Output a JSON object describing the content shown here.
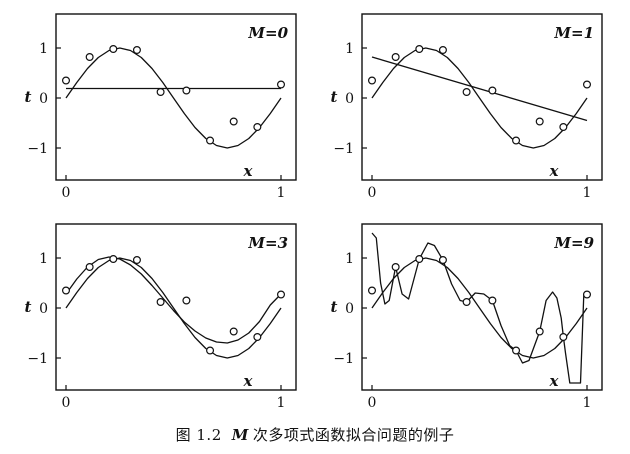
{
  "caption": {
    "figure_number": "图 1.2",
    "variable": "M",
    "text": "次多项式函数拟合问题的例子"
  },
  "chart_data": [
    {
      "type": "line",
      "panel_label": "M=0",
      "xlabel": "x",
      "ylabel": "t",
      "xlim": [
        0,
        1
      ],
      "ylim": [
        -1.5,
        1.5
      ],
      "xticks": [
        "0",
        "1"
      ],
      "yticks": [
        "1",
        "0",
        "−1"
      ],
      "grid": false,
      "points": {
        "x": [
          0.0,
          0.11,
          0.22,
          0.33,
          0.44,
          0.56,
          0.67,
          0.78,
          0.89,
          1.0
        ],
        "y": [
          0.35,
          0.82,
          0.98,
          0.96,
          0.12,
          0.15,
          -0.85,
          -0.47,
          -0.58,
          0.27
        ]
      },
      "curves": [
        {
          "role": "target",
          "x": [
            0.0,
            0.05,
            0.1,
            0.15,
            0.2,
            0.25,
            0.3,
            0.35,
            0.4,
            0.45,
            0.5,
            0.55,
            0.6,
            0.65,
            0.7,
            0.75,
            0.8,
            0.85,
            0.9,
            0.95,
            1.0
          ],
          "y": [
            0.0,
            0.31,
            0.59,
            0.81,
            0.95,
            1.0,
            0.95,
            0.81,
            0.59,
            0.31,
            0.0,
            -0.31,
            -0.59,
            -0.81,
            -0.95,
            -1.0,
            -0.95,
            -0.81,
            -0.59,
            -0.31,
            0.0
          ]
        },
        {
          "role": "fit",
          "x": [
            0.0,
            1.0
          ],
          "y": [
            0.19,
            0.19
          ]
        }
      ]
    },
    {
      "type": "line",
      "panel_label": "M=1",
      "xlabel": "x",
      "ylabel": "t",
      "xlim": [
        0,
        1
      ],
      "ylim": [
        -1.5,
        1.5
      ],
      "xticks": [
        "0",
        "1"
      ],
      "yticks": [
        "1",
        "0",
        "−1"
      ],
      "grid": false,
      "points": {
        "x": [
          0.0,
          0.11,
          0.22,
          0.33,
          0.44,
          0.56,
          0.67,
          0.78,
          0.89,
          1.0
        ],
        "y": [
          0.35,
          0.82,
          0.98,
          0.96,
          0.12,
          0.15,
          -0.85,
          -0.47,
          -0.58,
          0.27
        ]
      },
      "curves": [
        {
          "role": "target",
          "x": [
            0.0,
            0.05,
            0.1,
            0.15,
            0.2,
            0.25,
            0.3,
            0.35,
            0.4,
            0.45,
            0.5,
            0.55,
            0.6,
            0.65,
            0.7,
            0.75,
            0.8,
            0.85,
            0.9,
            0.95,
            1.0
          ],
          "y": [
            0.0,
            0.31,
            0.59,
            0.81,
            0.95,
            1.0,
            0.95,
            0.81,
            0.59,
            0.31,
            0.0,
            -0.31,
            -0.59,
            -0.81,
            -0.95,
            -1.0,
            -0.95,
            -0.81,
            -0.59,
            -0.31,
            0.0
          ]
        },
        {
          "role": "fit",
          "x": [
            0.0,
            1.0
          ],
          "y": [
            0.82,
            -0.45
          ]
        }
      ]
    },
    {
      "type": "line",
      "panel_label": "M=3",
      "xlabel": "x",
      "ylabel": "t",
      "xlim": [
        0,
        1
      ],
      "ylim": [
        -1.5,
        1.5
      ],
      "xticks": [
        "0",
        "1"
      ],
      "yticks": [
        "1",
        "0",
        "−1"
      ],
      "grid": false,
      "points": {
        "x": [
          0.0,
          0.11,
          0.22,
          0.33,
          0.44,
          0.56,
          0.67,
          0.78,
          0.89,
          1.0
        ],
        "y": [
          0.35,
          0.82,
          0.98,
          0.96,
          0.12,
          0.15,
          -0.85,
          -0.47,
          -0.58,
          0.27
        ]
      },
      "curves": [
        {
          "role": "target",
          "x": [
            0.0,
            0.05,
            0.1,
            0.15,
            0.2,
            0.25,
            0.3,
            0.35,
            0.4,
            0.45,
            0.5,
            0.55,
            0.6,
            0.65,
            0.7,
            0.75,
            0.8,
            0.85,
            0.9,
            0.95,
            1.0
          ],
          "y": [
            0.0,
            0.31,
            0.59,
            0.81,
            0.95,
            1.0,
            0.95,
            0.81,
            0.59,
            0.31,
            0.0,
            -0.31,
            -0.59,
            -0.81,
            -0.95,
            -1.0,
            -0.95,
            -0.81,
            -0.59,
            -0.31,
            0.0
          ]
        },
        {
          "role": "fit",
          "x": [
            0.0,
            0.05,
            0.1,
            0.15,
            0.2,
            0.25,
            0.3,
            0.35,
            0.4,
            0.45,
            0.5,
            0.55,
            0.6,
            0.65,
            0.7,
            0.75,
            0.8,
            0.85,
            0.9,
            0.95,
            1.0
          ],
          "y": [
            0.28,
            0.58,
            0.82,
            0.97,
            1.02,
            0.98,
            0.86,
            0.68,
            0.45,
            0.2,
            -0.05,
            -0.28,
            -0.46,
            -0.6,
            -0.68,
            -0.7,
            -0.64,
            -0.5,
            -0.27,
            0.06,
            0.28
          ]
        }
      ]
    },
    {
      "type": "line",
      "panel_label": "M=9",
      "xlabel": "x",
      "ylabel": "t",
      "xlim": [
        0,
        1
      ],
      "ylim": [
        -1.5,
        1.5
      ],
      "xticks": [
        "0",
        "1"
      ],
      "yticks": [
        "1",
        "0",
        "−1"
      ],
      "grid": false,
      "points": {
        "x": [
          0.0,
          0.11,
          0.22,
          0.33,
          0.44,
          0.56,
          0.67,
          0.78,
          0.89,
          1.0
        ],
        "y": [
          0.35,
          0.82,
          0.98,
          0.96,
          0.12,
          0.15,
          -0.85,
          -0.47,
          -0.58,
          0.27
        ]
      },
      "curves": [
        {
          "role": "target",
          "x": [
            0.0,
            0.05,
            0.1,
            0.15,
            0.2,
            0.25,
            0.3,
            0.35,
            0.4,
            0.45,
            0.5,
            0.55,
            0.6,
            0.65,
            0.7,
            0.75,
            0.8,
            0.85,
            0.9,
            0.95,
            1.0
          ],
          "y": [
            0.0,
            0.31,
            0.59,
            0.81,
            0.95,
            1.0,
            0.95,
            0.81,
            0.59,
            0.31,
            0.0,
            -0.31,
            -0.59,
            -0.81,
            -0.95,
            -1.0,
            -0.95,
            -0.81,
            -0.59,
            -0.31,
            0.0
          ]
        },
        {
          "role": "fit",
          "x": [
            0.0,
            0.02,
            0.04,
            0.06,
            0.08,
            0.11,
            0.14,
            0.17,
            0.22,
            0.26,
            0.29,
            0.33,
            0.37,
            0.41,
            0.44,
            0.48,
            0.52,
            0.56,
            0.6,
            0.64,
            0.67,
            0.7,
            0.73,
            0.78,
            0.81,
            0.84,
            0.86,
            0.88,
            0.89,
            0.9,
            0.92,
            0.95,
            0.97,
            0.985,
            1.0
          ],
          "y": [
            1.5,
            1.4,
            0.5,
            0.08,
            0.15,
            0.82,
            0.28,
            0.18,
            0.98,
            1.3,
            1.25,
            0.96,
            0.48,
            0.15,
            0.12,
            0.3,
            0.28,
            0.15,
            -0.35,
            -0.75,
            -0.85,
            -1.1,
            -1.05,
            -0.47,
            0.15,
            0.32,
            0.2,
            -0.2,
            -0.58,
            -0.9,
            -1.5,
            -1.5,
            -1.5,
            0.27,
            0.27
          ]
        }
      ]
    }
  ]
}
